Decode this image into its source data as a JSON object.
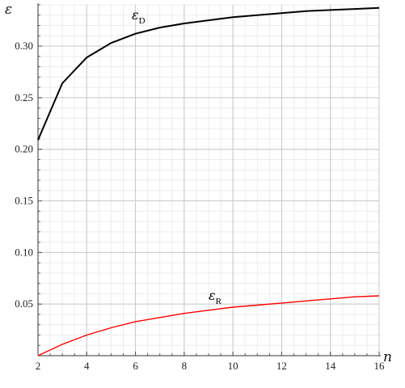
{
  "chart_data": {
    "type": "line",
    "title": "",
    "xlabel": "n",
    "ylabel": "ε",
    "xlim": [
      2,
      16
    ],
    "ylim": [
      0,
      0.34
    ],
    "x_ticks": [
      "2",
      "4",
      "6",
      "8",
      "10",
      "12",
      "14",
      "16"
    ],
    "y_ticks": [
      "0.05",
      "0.10",
      "0.15",
      "0.20",
      "0.25",
      "0.30"
    ],
    "grid": true,
    "legend": "none",
    "series": [
      {
        "name": "ε",
        "subscript": "D",
        "color": "#000000",
        "x": [
          2,
          3,
          4,
          5,
          6,
          7,
          8,
          9,
          10,
          11,
          12,
          13,
          14,
          15,
          16
        ],
        "values": [
          0.209,
          0.264,
          0.289,
          0.303,
          0.312,
          0.318,
          0.322,
          0.325,
          0.328,
          0.33,
          0.332,
          0.334,
          0.335,
          0.336,
          0.337
        ]
      },
      {
        "name": "ε",
        "subscript": "R",
        "color": "#ff0000",
        "x": [
          2,
          3,
          4,
          5,
          6,
          7,
          8,
          9,
          10,
          11,
          12,
          13,
          14,
          15,
          16
        ],
        "values": [
          0.0,
          0.011,
          0.02,
          0.027,
          0.033,
          0.037,
          0.041,
          0.044,
          0.047,
          0.049,
          0.051,
          0.053,
          0.055,
          0.057,
          0.058
        ]
      }
    ]
  }
}
